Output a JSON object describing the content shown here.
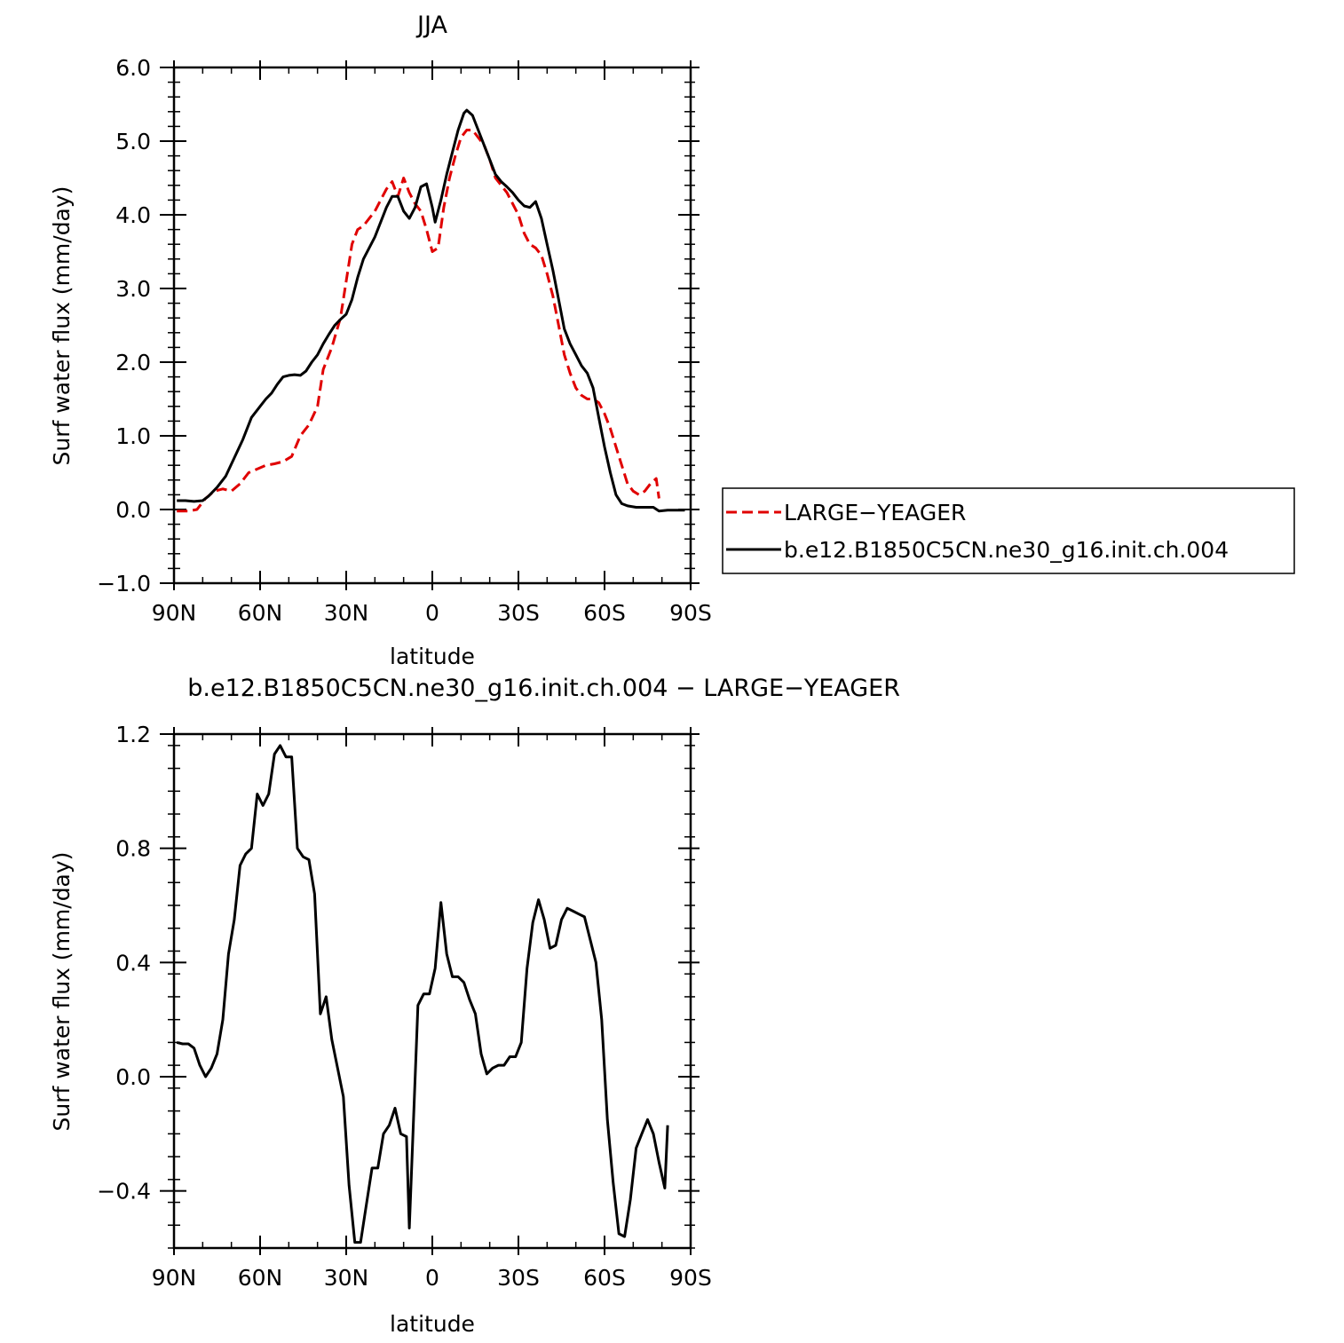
{
  "chart_data": [
    {
      "type": "line",
      "title": "JJA",
      "xlabel": "latitude",
      "ylabel": "Surf water flux (mm/day)",
      "xlim": [
        -90,
        90
      ],
      "ylim": [
        -1.0,
        6.0
      ],
      "x_ticks": [
        -90,
        -60,
        -30,
        0,
        30,
        60,
        90
      ],
      "x_tick_labels": [
        "90N",
        "60N",
        "30N",
        "0",
        "30S",
        "60S",
        "90S"
      ],
      "y_ticks": [
        -1,
        0,
        1,
        2,
        3,
        4,
        5,
        6
      ],
      "y_tick_labels": [
        "−1.0",
        "0.0",
        "1.0",
        "2.0",
        "3.0",
        "4.0",
        "5.0",
        "6.0"
      ],
      "grid": false,
      "legend_position": "right",
      "series": [
        {
          "name": "LARGE−YEAGER",
          "color": "#e00000",
          "dash": "dashed",
          "points": [
            [
              -89,
              -0.02
            ],
            [
              -85,
              -0.02
            ],
            [
              -82,
              0.0
            ],
            [
              -79,
              0.15
            ],
            [
              -76,
              0.25
            ],
            [
              -73,
              0.28
            ],
            [
              -70,
              0.25
            ],
            [
              -67,
              0.35
            ],
            [
              -64,
              0.5
            ],
            [
              -61,
              0.55
            ],
            [
              -58,
              0.6
            ],
            [
              -55,
              0.62
            ],
            [
              -52,
              0.65
            ],
            [
              -49,
              0.72
            ],
            [
              -46,
              1.0
            ],
            [
              -43,
              1.15
            ],
            [
              -40,
              1.4
            ],
            [
              -38,
              1.9
            ],
            [
              -35,
              2.2
            ],
            [
              -32,
              2.6
            ],
            [
              -30,
              3.1
            ],
            [
              -28,
              3.6
            ],
            [
              -26,
              3.8
            ],
            [
              -24,
              3.85
            ],
            [
              -22,
              3.95
            ],
            [
              -20,
              4.05
            ],
            [
              -18,
              4.2
            ],
            [
              -16,
              4.35
            ],
            [
              -14,
              4.45
            ],
            [
              -12,
              4.25
            ],
            [
              -10,
              4.5
            ],
            [
              -8,
              4.3
            ],
            [
              -6,
              4.15
            ],
            [
              -4,
              4.05
            ],
            [
              -2,
              3.8
            ],
            [
              0,
              3.5
            ],
            [
              2,
              3.55
            ],
            [
              4,
              4.1
            ],
            [
              6,
              4.5
            ],
            [
              8,
              4.8
            ],
            [
              10,
              5.05
            ],
            [
              12,
              5.15
            ],
            [
              14,
              5.15
            ],
            [
              16,
              5.05
            ],
            [
              18,
              4.95
            ],
            [
              20,
              4.75
            ],
            [
              22,
              4.5
            ],
            [
              24,
              4.4
            ],
            [
              26,
              4.3
            ],
            [
              28,
              4.15
            ],
            [
              30,
              4.0
            ],
            [
              32,
              3.75
            ],
            [
              34,
              3.6
            ],
            [
              36,
              3.55
            ],
            [
              38,
              3.45
            ],
            [
              40,
              3.2
            ],
            [
              42,
              2.9
            ],
            [
              44,
              2.5
            ],
            [
              46,
              2.1
            ],
            [
              48,
              1.85
            ],
            [
              50,
              1.65
            ],
            [
              52,
              1.55
            ],
            [
              54,
              1.5
            ],
            [
              56,
              1.5
            ],
            [
              58,
              1.45
            ],
            [
              60,
              1.3
            ],
            [
              62,
              1.1
            ],
            [
              64,
              0.85
            ],
            [
              66,
              0.6
            ],
            [
              68,
              0.35
            ],
            [
              70,
              0.25
            ],
            [
              72,
              0.2
            ],
            [
              74,
              0.25
            ],
            [
              76,
              0.35
            ],
            [
              78,
              0.42
            ],
            [
              79,
              0.15
            ]
          ]
        },
        {
          "name": "b.e12.B1850C5CN.ne30_g16.init.ch.004",
          "color": "#000000",
          "dash": "solid",
          "points": [
            [
              -89,
              0.12
            ],
            [
              -86,
              0.12
            ],
            [
              -83,
              0.11
            ],
            [
              -80,
              0.12
            ],
            [
              -78,
              0.18
            ],
            [
              -75,
              0.3
            ],
            [
              -72,
              0.45
            ],
            [
              -69,
              0.7
            ],
            [
              -66,
              0.95
            ],
            [
              -63,
              1.25
            ],
            [
              -60,
              1.4
            ],
            [
              -58,
              1.5
            ],
            [
              -56,
              1.58
            ],
            [
              -54,
              1.7
            ],
            [
              -52,
              1.8
            ],
            [
              -50,
              1.82
            ],
            [
              -48,
              1.83
            ],
            [
              -46,
              1.82
            ],
            [
              -44,
              1.88
            ],
            [
              -42,
              2.0
            ],
            [
              -40,
              2.1
            ],
            [
              -38,
              2.25
            ],
            [
              -36,
              2.38
            ],
            [
              -34,
              2.5
            ],
            [
              -32,
              2.58
            ],
            [
              -30,
              2.65
            ],
            [
              -28,
              2.85
            ],
            [
              -26,
              3.15
            ],
            [
              -24,
              3.4
            ],
            [
              -22,
              3.55
            ],
            [
              -20,
              3.7
            ],
            [
              -18,
              3.9
            ],
            [
              -16,
              4.1
            ],
            [
              -14,
              4.25
            ],
            [
              -12,
              4.25
            ],
            [
              -10,
              4.05
            ],
            [
              -8,
              3.95
            ],
            [
              -6,
              4.1
            ],
            [
              -4,
              4.38
            ],
            [
              -2,
              4.42
            ],
            [
              0,
              4.1
            ],
            [
              1,
              3.9
            ],
            [
              3,
              4.2
            ],
            [
              5,
              4.55
            ],
            [
              7,
              4.85
            ],
            [
              9,
              5.15
            ],
            [
              11,
              5.38
            ],
            [
              12,
              5.42
            ],
            [
              14,
              5.35
            ],
            [
              16,
              5.15
            ],
            [
              18,
              4.95
            ],
            [
              20,
              4.75
            ],
            [
              22,
              4.55
            ],
            [
              24,
              4.45
            ],
            [
              26,
              4.38
            ],
            [
              28,
              4.3
            ],
            [
              30,
              4.2
            ],
            [
              32,
              4.12
            ],
            [
              34,
              4.1
            ],
            [
              36,
              4.18
            ],
            [
              38,
              3.95
            ],
            [
              40,
              3.6
            ],
            [
              42,
              3.25
            ],
            [
              44,
              2.85
            ],
            [
              46,
              2.45
            ],
            [
              48,
              2.25
            ],
            [
              50,
              2.1
            ],
            [
              52,
              1.95
            ],
            [
              54,
              1.85
            ],
            [
              56,
              1.65
            ],
            [
              58,
              1.25
            ],
            [
              60,
              0.85
            ],
            [
              62,
              0.5
            ],
            [
              64,
              0.2
            ],
            [
              66,
              0.08
            ],
            [
              68,
              0.05
            ],
            [
              71,
              0.03
            ],
            [
              74,
              0.03
            ],
            [
              77,
              0.03
            ],
            [
              79,
              -0.02
            ],
            [
              82,
              -0.01
            ],
            [
              85,
              -0.01
            ],
            [
              88,
              -0.01
            ]
          ]
        }
      ]
    },
    {
      "type": "line",
      "title": "b.e12.B1850C5CN.ne30_g16.init.ch.004 − LARGE−YEAGER",
      "xlabel": "latitude",
      "ylabel": "Surf water flux (mm/day)",
      "xlim": [
        -90,
        90
      ],
      "ylim": [
        -0.6,
        1.2
      ],
      "x_ticks": [
        -90,
        -60,
        -30,
        0,
        30,
        60,
        90
      ],
      "x_tick_labels": [
        "90N",
        "60N",
        "30N",
        "0",
        "30S",
        "60S",
        "90S"
      ],
      "y_ticks": [
        -0.4,
        0.0,
        0.4,
        0.8,
        1.2
      ],
      "y_tick_labels": [
        "−0.4",
        "0.0",
        "0.4",
        "0.8",
        "1.2"
      ],
      "grid": false,
      "series": [
        {
          "name": "",
          "color": "#000000",
          "dash": "solid",
          "points": [
            [
              -89,
              0.12
            ],
            [
              -87,
              0.115
            ],
            [
              -85,
              0.115
            ],
            [
              -83,
              0.1
            ],
            [
              -81,
              0.04
            ],
            [
              -79,
              0.0
            ],
            [
              -77,
              0.03
            ],
            [
              -75,
              0.08
            ],
            [
              -73,
              0.2
            ],
            [
              -71,
              0.43
            ],
            [
              -69,
              0.55
            ],
            [
              -67,
              0.74
            ],
            [
              -65,
              0.78
            ],
            [
              -63,
              0.8
            ],
            [
              -61,
              0.99
            ],
            [
              -59,
              0.95
            ],
            [
              -57,
              0.99
            ],
            [
              -55,
              1.13
            ],
            [
              -53,
              1.16
            ],
            [
              -51,
              1.12
            ],
            [
              -49,
              1.12
            ],
            [
              -47,
              0.8
            ],
            [
              -45,
              0.77
            ],
            [
              -43,
              0.76
            ],
            [
              -41,
              0.64
            ],
            [
              -39,
              0.22
            ],
            [
              -37,
              0.28
            ],
            [
              -35,
              0.13
            ],
            [
              -33,
              0.03
            ],
            [
              -31,
              -0.07
            ],
            [
              -29,
              -0.38
            ],
            [
              -27,
              -0.58
            ],
            [
              -25,
              -0.58
            ],
            [
              -23,
              -0.45
            ],
            [
              -21,
              -0.32
            ],
            [
              -19,
              -0.32
            ],
            [
              -17,
              -0.2
            ],
            [
              -15,
              -0.17
            ],
            [
              -13,
              -0.11
            ],
            [
              -11,
              -0.2
            ],
            [
              -9,
              -0.21
            ],
            [
              -8,
              -0.53
            ],
            [
              -5,
              0.25
            ],
            [
              -3,
              0.29
            ],
            [
              -1,
              0.29
            ],
            [
              1,
              0.38
            ],
            [
              3,
              0.61
            ],
            [
              5,
              0.43
            ],
            [
              7,
              0.35
            ],
            [
              9,
              0.35
            ],
            [
              11,
              0.33
            ],
            [
              13,
              0.27
            ],
            [
              15,
              0.22
            ],
            [
              17,
              0.08
            ],
            [
              19,
              0.01
            ],
            [
              21,
              0.03
            ],
            [
              23,
              0.04
            ],
            [
              25,
              0.04
            ],
            [
              27,
              0.07
            ],
            [
              29,
              0.07
            ],
            [
              31,
              0.12
            ],
            [
              33,
              0.38
            ],
            [
              35,
              0.54
            ],
            [
              37,
              0.62
            ],
            [
              39,
              0.55
            ],
            [
              41,
              0.45
            ],
            [
              43,
              0.46
            ],
            [
              45,
              0.55
            ],
            [
              47,
              0.59
            ],
            [
              49,
              0.58
            ],
            [
              51,
              0.57
            ],
            [
              53,
              0.56
            ],
            [
              57,
              0.4
            ],
            [
              59,
              0.2
            ],
            [
              61,
              -0.15
            ],
            [
              63,
              -0.37
            ],
            [
              65,
              -0.55
            ],
            [
              67,
              -0.56
            ],
            [
              69,
              -0.43
            ],
            [
              71,
              -0.25
            ],
            [
              73,
              -0.2
            ],
            [
              75,
              -0.15
            ],
            [
              77,
              -0.2
            ],
            [
              79,
              -0.3
            ],
            [
              81,
              -0.39
            ],
            [
              82,
              -0.17
            ]
          ]
        }
      ]
    }
  ]
}
